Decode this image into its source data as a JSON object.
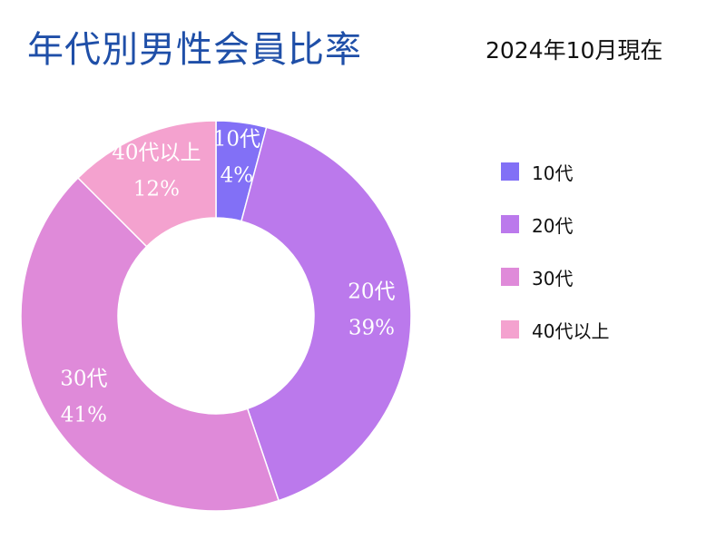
{
  "title": "年代別男性会員比率",
  "subtitle": "2024年10月現在",
  "chart_data": {
    "type": "pie",
    "title": "年代別男性会員比率",
    "subtitle": "2024年10月現在",
    "categories": [
      "10代",
      "20代",
      "30代",
      "40代以上"
    ],
    "values": [
      4,
      39,
      41,
      12
    ],
    "unit": "%",
    "colors": [
      "#8270f6",
      "#bb79ec",
      "#df8ad9",
      "#f4a2cf"
    ],
    "legend": "right"
  }
}
